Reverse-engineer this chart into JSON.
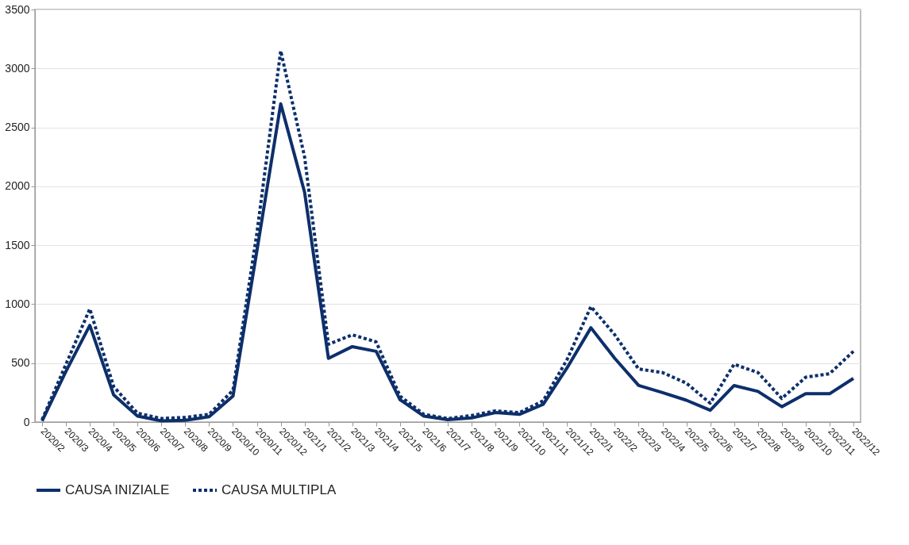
{
  "chart_data": {
    "type": "line",
    "categories": [
      "2020/2",
      "2020/3",
      "2020/4",
      "2020/5",
      "2020/6",
      "2020/7",
      "2020/8",
      "2020/9",
      "2020/10",
      "2020/11",
      "2020/12",
      "2021/1",
      "2021/2",
      "2021/3",
      "2021/4",
      "2021/5",
      "2021/6",
      "2021/7",
      "2021/8",
      "2021/9",
      "2021/10",
      "2021/11",
      "2021/12",
      "2022/1",
      "2022/2",
      "2022/3",
      "2022/4",
      "2022/5",
      "2022/6",
      "2022/7",
      "2022/8",
      "2022/9",
      "2022/10",
      "2022/11",
      "2022/12"
    ],
    "series": [
      {
        "name": "CAUSA INIZIALE",
        "color": "#0d2f6b",
        "line_style": "solid",
        "values": [
          10,
          430,
          820,
          230,
          50,
          10,
          15,
          45,
          220,
          1450,
          2700,
          1950,
          540,
          640,
          600,
          190,
          50,
          20,
          35,
          80,
          65,
          150,
          460,
          800,
          540,
          310,
          250,
          185,
          100,
          310,
          260,
          130,
          240,
          240,
          370
        ]
      },
      {
        "name": "CAUSA MULTIPLA",
        "color": "#0d2f6b",
        "line_style": "dotted",
        "values": [
          20,
          490,
          960,
          300,
          75,
          30,
          40,
          65,
          270,
          1600,
          3150,
          2250,
          660,
          740,
          680,
          220,
          65,
          30,
          55,
          95,
          80,
          180,
          530,
          980,
          740,
          450,
          420,
          330,
          160,
          490,
          420,
          200,
          380,
          410,
          600
        ]
      }
    ],
    "ylim": [
      0,
      3500
    ],
    "yticks": [
      0,
      500,
      1000,
      1500,
      2000,
      2500,
      3000,
      3500
    ],
    "grid": "y",
    "legend": "bottom",
    "marker": "none"
  }
}
